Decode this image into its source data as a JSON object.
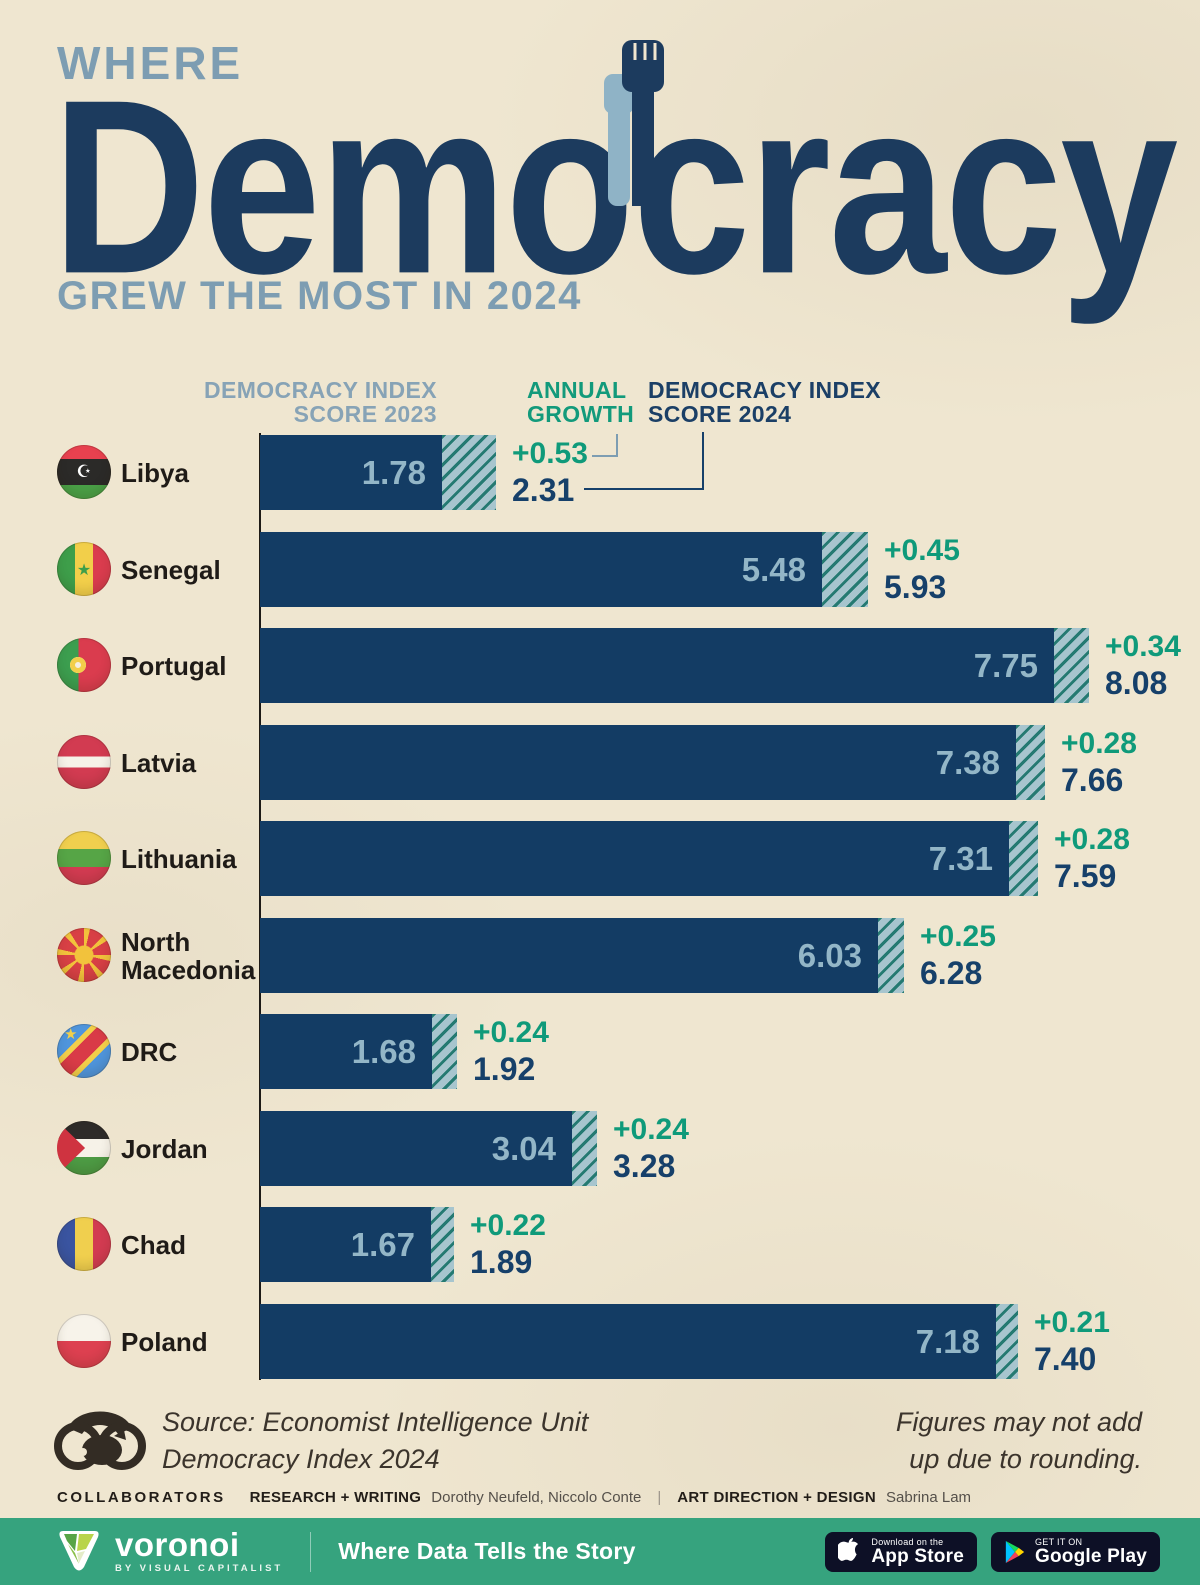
{
  "header": {
    "kicker": "WHERE",
    "title": "Democracy",
    "subtitle": "GREW THE MOST IN 2024"
  },
  "chart_data": {
    "type": "bar",
    "orientation": "horizontal",
    "title": "Where Democracy Grew the Most in 2024",
    "xlabel": "Democracy Index score",
    "xlim": [
      0,
      8.5
    ],
    "grid": false,
    "legend_position": "none",
    "column_headers": {
      "score_2023": "DEMOCRACY INDEX\nSCORE 2023",
      "growth": "ANNUAL\nGROWTH",
      "score_2024": "DEMOCRACY INDEX\nSCORE 2024"
    },
    "categories": [
      "Libya",
      "Senegal",
      "Portugal",
      "Latvia",
      "Lithuania",
      "North Macedonia",
      "DRC",
      "Jordan",
      "Chad",
      "Poland"
    ],
    "series": [
      {
        "name": "Democracy Index Score 2023",
        "values": [
          1.78,
          5.48,
          7.75,
          7.38,
          7.31,
          6.03,
          1.68,
          3.04,
          1.67,
          7.18
        ]
      },
      {
        "name": "Annual Growth",
        "values": [
          0.53,
          0.45,
          0.34,
          0.28,
          0.28,
          0.25,
          0.24,
          0.24,
          0.22,
          0.21
        ]
      },
      {
        "name": "Democracy Index Score 2024",
        "values": [
          2.31,
          5.93,
          8.08,
          7.66,
          7.59,
          6.28,
          1.92,
          3.28,
          1.89,
          7.4
        ]
      }
    ],
    "rows": [
      {
        "country": "Libya",
        "flag": "libya",
        "flag_icon": "libya-flag-icon",
        "score_2023": "1.78",
        "score_2023_num": 1.78,
        "growth": "+0.53",
        "growth_num": 0.53,
        "score_2024": "2.31"
      },
      {
        "country": "Senegal",
        "flag": "senegal",
        "flag_icon": "senegal-flag-icon",
        "score_2023": "5.48",
        "score_2023_num": 5.48,
        "growth": "+0.45",
        "growth_num": 0.45,
        "score_2024": "5.93"
      },
      {
        "country": "Portugal",
        "flag": "portugal",
        "flag_icon": "portugal-flag-icon",
        "score_2023": "7.75",
        "score_2023_num": 7.75,
        "growth": "+0.34",
        "growth_num": 0.34,
        "score_2024": "8.08"
      },
      {
        "country": "Latvia",
        "flag": "latvia",
        "flag_icon": "latvia-flag-icon",
        "score_2023": "7.38",
        "score_2023_num": 7.38,
        "growth": "+0.28",
        "growth_num": 0.28,
        "score_2024": "7.66"
      },
      {
        "country": "Lithuania",
        "flag": "lithuania",
        "flag_icon": "lithuania-flag-icon",
        "score_2023": "7.31",
        "score_2023_num": 7.31,
        "growth": "+0.28",
        "growth_num": 0.28,
        "score_2024": "7.59"
      },
      {
        "country": "North\nMacedonia",
        "flag": "north-macedonia",
        "flag_icon": "north-macedonia-flag-icon",
        "score_2023": "6.03",
        "score_2023_num": 6.03,
        "growth": "+0.25",
        "growth_num": 0.25,
        "score_2024": "6.28"
      },
      {
        "country": "DRC",
        "flag": "drc",
        "flag_icon": "drc-flag-icon",
        "score_2023": "1.68",
        "score_2023_num": 1.68,
        "growth": "+0.24",
        "growth_num": 0.24,
        "score_2024": "1.92"
      },
      {
        "country": "Jordan",
        "flag": "jordan",
        "flag_icon": "jordan-flag-icon",
        "score_2023": "3.04",
        "score_2023_num": 3.04,
        "growth": "+0.24",
        "growth_num": 0.24,
        "score_2024": "3.28"
      },
      {
        "country": "Chad",
        "flag": "chad",
        "flag_icon": "chad-flag-icon",
        "score_2023": "1.67",
        "score_2023_num": 1.67,
        "growth": "+0.22",
        "growth_num": 0.22,
        "score_2024": "1.89"
      },
      {
        "country": "Poland",
        "flag": "poland",
        "flag_icon": "poland-flag-icon",
        "score_2023": "7.18",
        "score_2023_num": 7.18,
        "growth": "+0.21",
        "growth_num": 0.21,
        "score_2024": "7.40"
      }
    ],
    "colors": {
      "bar": "#133c64",
      "bar_value_text": "#93b6c7",
      "growth_hatch_bg": "#a7c5ce",
      "growth_hatch_stripe": "#257a72",
      "growth_text": "#0f9a7a",
      "score_2024_text": "#16406a",
      "header_2023": "#87a3b6",
      "background": "#efe6d0"
    }
  },
  "footer": {
    "source": "Source: Economist Intelligence Unit\nDemocracy Index 2024",
    "note": "Figures may not add\nup due to rounding.",
    "collaborators_label": "COLLABORATORS",
    "research_label": "RESEARCH + WRITING",
    "research_names": "Dorothy Neufeld, Niccolo Conte",
    "divider": "|",
    "design_label": "ART DIRECTION + DESIGN",
    "design_name": "Sabrina Lam"
  },
  "brandbar": {
    "wordmark": "voronoi",
    "byline": "BY VISUAL CAPITALIST",
    "tagline": "Where Data Tells the Story",
    "appstore": {
      "line1": "Download on the",
      "line2": "App Store"
    },
    "googleplay": {
      "line1": "GET IT ON",
      "line2": "Google Play"
    }
  }
}
